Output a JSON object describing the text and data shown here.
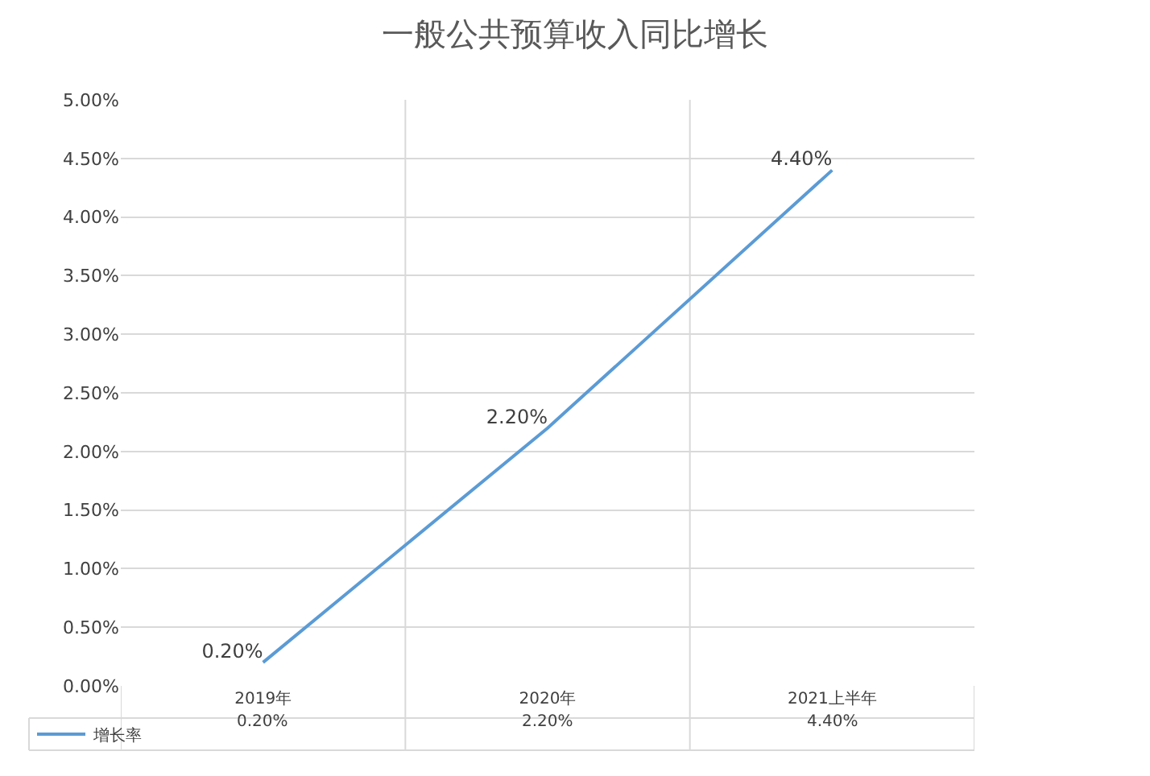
{
  "chart_data": {
    "type": "line",
    "title": "一般公共预算收入同比增长",
    "categories": [
      "2019年",
      "2020年",
      "2021上半年"
    ],
    "series": [
      {
        "name": "增长率",
        "color": "#5b9bd5",
        "values": [
          0.2,
          2.2,
          4.4
        ],
        "value_labels": [
          "0.20%",
          "2.20%",
          "4.40%"
        ]
      }
    ],
    "ylim": [
      0,
      5
    ],
    "yticks": [
      {
        "value": 0,
        "label": "0.00%"
      },
      {
        "value": 0.5,
        "label": "0.50%"
      },
      {
        "value": 1,
        "label": "1.00%"
      },
      {
        "value": 1.5,
        "label": "1.50%"
      },
      {
        "value": 2,
        "label": "2.00%"
      },
      {
        "value": 2.5,
        "label": "2.50%"
      },
      {
        "value": 3,
        "label": "3.00%"
      },
      {
        "value": 3.5,
        "label": "3.50%"
      },
      {
        "value": 4,
        "label": "4.00%"
      },
      {
        "value": 4.5,
        "label": "4.50%"
      },
      {
        "value": 5,
        "label": "5.00%"
      }
    ],
    "grid": true,
    "legend": "bottom left",
    "marker": "none",
    "line_style": "solid"
  }
}
